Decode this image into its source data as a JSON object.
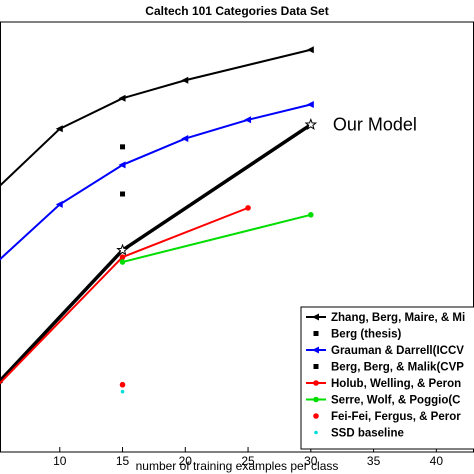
{
  "chart_data": {
    "type": "line",
    "title": "Caltech 101 Categories Data Set",
    "x_label": "number of training examples per class",
    "xlim": [
      5,
      43
    ],
    "ylim": [
      8,
      70
    ],
    "xticks": [
      10,
      15,
      20,
      25,
      30,
      35,
      40
    ],
    "legend": "lower right",
    "series": [
      {
        "name": "Zhang, Berg, Maire, & Mi",
        "color": "#000000",
        "marker": "triangle-left",
        "line": true,
        "x": [
          5,
          10,
          15,
          20,
          30
        ],
        "values": [
          46,
          54.6,
          59,
          61.6,
          66
        ]
      },
      {
        "name": "Berg (thesis)",
        "color": "#000000",
        "marker": "square",
        "line": false,
        "x": [
          15,
          15
        ],
        "values": [
          52,
          45.2
        ]
      },
      {
        "name": "Our Model",
        "color": "#000000",
        "marker": "star",
        "line": true,
        "thick": true,
        "x": [
          5,
          15,
          30
        ],
        "values": [
          17.8,
          37.1,
          55.2
        ]
      },
      {
        "name": "Grauman & Darrell(ICCV",
        "color": "#0000ff",
        "marker": "triangle-left",
        "line": true,
        "x": [
          5,
          10,
          15,
          20,
          25,
          30
        ],
        "values": [
          35.4,
          43.7,
          49.4,
          53.2,
          55.9,
          58.1
        ]
      },
      {
        "name": "Berg, Berg, & Malik(CVP",
        "color": "#000000",
        "marker": "square",
        "line": false,
        "x": [],
        "values": []
      },
      {
        "name": "Holub, Welling, & Peron",
        "color": "#ff0000",
        "marker": "circle",
        "line": true,
        "x": [
          5,
          15,
          25
        ],
        "values": [
          17.5,
          36.1,
          43.2
        ]
      },
      {
        "name": "Serre, Wolf, & Poggio(C",
        "color": "#00dd00",
        "marker": "circle",
        "line": true,
        "x": [
          15,
          30
        ],
        "values": [
          35.4,
          42.2
        ]
      },
      {
        "name": "Fei-Fei, Fergus, & Peror",
        "color": "#ff0000",
        "marker": "circle",
        "line": false,
        "x": [
          15
        ],
        "values": [
          17.7
        ]
      },
      {
        "name": "SSD baseline",
        "color": "#00dddd",
        "marker": "dot",
        "line": false,
        "x": [
          15
        ],
        "values": [
          16.7
        ]
      }
    ]
  }
}
